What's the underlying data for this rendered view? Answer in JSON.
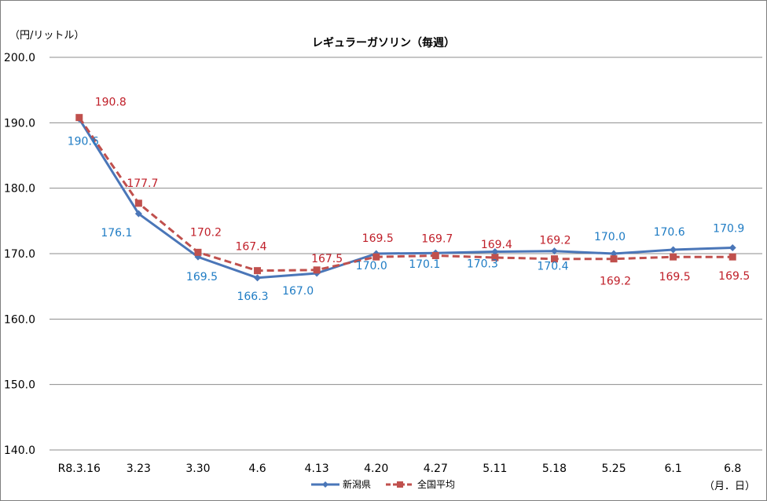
{
  "chart_data": {
    "type": "line",
    "title": "レギュラーガソリン（毎週）",
    "y_unit_label": "（円/リットル）",
    "x_unit_label": "（月．日）",
    "categories": [
      "R8.3.16",
      "3.23",
      "3.30",
      "4.6",
      "4.13",
      "4.20",
      "4.27",
      "5.11",
      "5.18",
      "5.25",
      "6.1",
      "6.8"
    ],
    "ylim": [
      140,
      200
    ],
    "yticks": [
      "140.0",
      "150.0",
      "160.0",
      "170.0",
      "180.0",
      "190.0",
      "200.0"
    ],
    "grid": true,
    "legend_position": "bottom",
    "series": [
      {
        "name": "新潟県",
        "color": "#4a76b8",
        "label_color": "#1f7cc4",
        "line_style": "solid",
        "marker": "diamond",
        "values": [
          190.6,
          176.1,
          169.5,
          166.3,
          167.0,
          170.0,
          170.1,
          170.3,
          170.4,
          170.0,
          170.6,
          170.9
        ],
        "labels": [
          "190.6",
          "176.1",
          "169.5",
          "166.3",
          "167.0",
          "170.0",
          "170.1",
          "170.3",
          "170.4",
          "170.0",
          "170.6",
          "170.9"
        ]
      },
      {
        "name": "全国平均",
        "color": "#c0504d",
        "label_color": "#c0202a",
        "line_style": "dashed",
        "marker": "square",
        "values": [
          190.8,
          177.7,
          170.2,
          167.4,
          167.5,
          169.5,
          169.7,
          169.4,
          169.2,
          169.2,
          169.5,
          169.5
        ],
        "labels": [
          "190.8",
          "177.7",
          "170.2",
          "167.4",
          "167.5",
          "169.5",
          "169.7",
          "169.4",
          "169.2",
          "169.2",
          "169.5",
          "169.5"
        ]
      }
    ]
  }
}
